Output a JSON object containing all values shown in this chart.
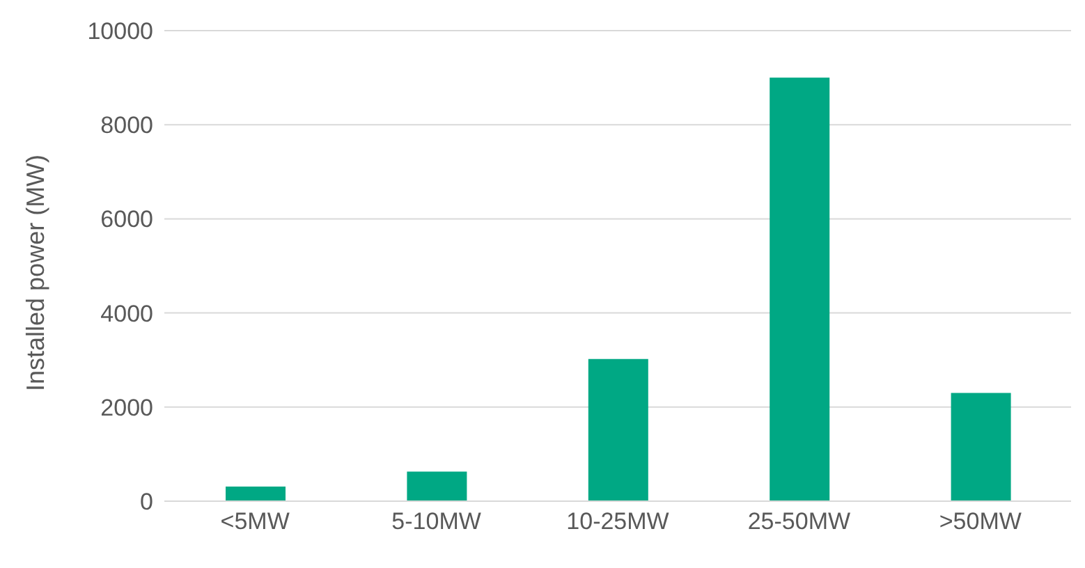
{
  "chart_data": {
    "type": "bar",
    "ylabel": "Installed power (MW)",
    "categories": [
      "<5MW",
      "5-10MW",
      "10-25MW",
      "25-50MW",
      ">50MW"
    ],
    "values": [
      310,
      630,
      3020,
      9000,
      2300
    ],
    "color": "#00a884",
    "ylim": [
      0,
      10000
    ],
    "yticks": [
      0,
      2000,
      4000,
      6000,
      8000,
      10000
    ],
    "grid": "y"
  }
}
